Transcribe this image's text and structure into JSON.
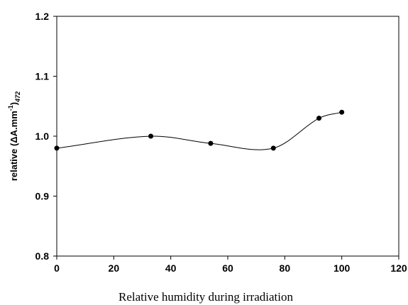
{
  "chart_data": {
    "type": "line",
    "title": "",
    "xlabel": "Relative humidity during irradiation",
    "ylabel": {
      "prefix": "relative (ΔA.mm",
      "sup": "-1",
      "close": ")",
      "sub": "472"
    },
    "xlim": [
      0,
      120
    ],
    "ylim": [
      0.8,
      1.2
    ],
    "x_ticks": [
      0,
      20,
      40,
      60,
      80,
      100,
      120
    ],
    "x_tick_labels": [
      "0",
      "20",
      "40",
      "60",
      "80",
      "100",
      "120"
    ],
    "y_ticks": [
      0.8,
      0.9,
      1.0,
      1.1,
      1.2
    ],
    "y_tick_labels": [
      "0.8",
      "0.9",
      "1.0",
      "1.1",
      "1.2"
    ],
    "grid": false,
    "smooth": true,
    "series": [
      {
        "x": [
          0,
          33,
          54,
          76,
          92,
          100
        ],
        "y": [
          0.98,
          1.0,
          0.988,
          0.98,
          1.03,
          1.04
        ],
        "color": "#000000",
        "marker": "circle"
      }
    ]
  }
}
